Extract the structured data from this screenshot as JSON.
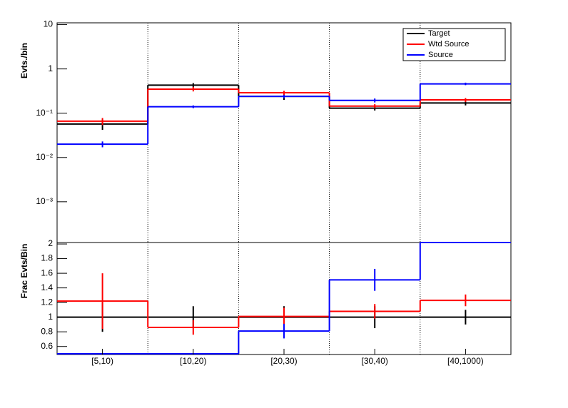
{
  "chart_data": [
    {
      "type": "step",
      "log_y": true,
      "y_label": "Evts./bin",
      "ylim": [
        0.00012,
        11
      ],
      "yticks": [
        {
          "value": 0.001,
          "label": "10⁻³"
        },
        {
          "value": 0.01,
          "label": "10⁻²"
        },
        {
          "value": 0.1,
          "label": "10⁻¹"
        },
        1,
        10
      ],
      "grid": true,
      "legend": "top-right",
      "series": [
        {
          "name": "Target",
          "color": "#000000",
          "values": [
            0.057,
            0.43,
            0.24,
            0.13,
            0.17
          ],
          "errors": [
            0.015,
            0.05,
            0.04,
            0.015,
            0.02
          ]
        },
        {
          "name": "Wtd Source",
          "color": "#ff0000",
          "values": [
            0.066,
            0.35,
            0.29,
            0.145,
            0.2
          ],
          "errors": [
            0.012,
            0.04,
            0.03,
            0.015,
            0.02
          ]
        },
        {
          "name": "Source",
          "color": "#0000ff",
          "values": [
            0.02,
            0.14,
            0.24,
            0.195,
            0.46
          ],
          "errors": [
            0.003,
            0.01,
            0.02,
            0.02,
            0.03
          ]
        }
      ]
    },
    {
      "type": "step",
      "log_y": false,
      "y_label": "Frac Evts/Bin",
      "categories": [
        "[5,10)",
        "[10,20)",
        "[20,30)",
        "[30,40)",
        "[40,1000)"
      ],
      "ylim": [
        0.49,
        2.02
      ],
      "yticks": [
        0.6,
        0.8,
        1,
        1.2,
        1.4,
        1.6,
        1.8,
        2
      ],
      "grid": true,
      "series": [
        {
          "color": "#000000",
          "values": [
            1,
            1,
            1,
            1,
            1
          ],
          "errors": [
            0.2,
            0.15,
            0.15,
            0.15,
            0.1
          ]
        },
        {
          "color": "#ff0000",
          "values": [
            1.22,
            0.86,
            1.01,
            1.08,
            1.23
          ],
          "errors": [
            0.38,
            0.1,
            0.12,
            0.1,
            0.08
          ]
        },
        {
          "color": "#0000ff",
          "values": [
            0.5,
            0.5,
            0.81,
            1.51,
            2.02
          ],
          "errors": [
            0,
            0,
            0.1,
            0.15,
            0
          ]
        }
      ]
    }
  ]
}
